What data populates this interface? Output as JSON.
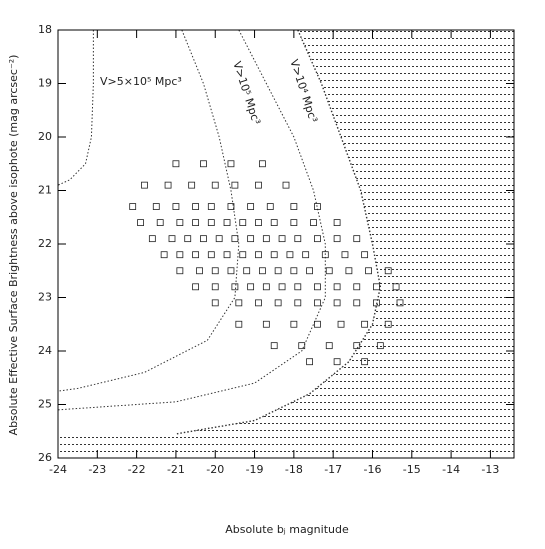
{
  "chart_data": {
    "type": "scatter",
    "xlabel": "Absolute bⱼ magnitude",
    "ylabel": "Absolute Effective Surface Brightness above isophote (mag arcsec⁻²)",
    "xlim": [
      -24,
      -12.4
    ],
    "ylim": [
      26,
      18
    ],
    "xticks": [
      -24,
      -23,
      -22,
      -21,
      -20,
      -19,
      -18,
      -17,
      -16,
      -15,
      -14,
      -13
    ],
    "yticks": [
      18,
      19,
      20,
      21,
      22,
      23,
      24,
      25,
      26
    ],
    "marker_color": "#222222",
    "x": [
      -21.0,
      -20.3,
      -19.6,
      -18.8,
      -21.8,
      -21.2,
      -20.6,
      -20.0,
      -19.5,
      -18.9,
      -18.2,
      -22.1,
      -21.5,
      -21.0,
      -20.5,
      -20.1,
      -19.6,
      -19.1,
      -18.6,
      -18.0,
      -17.4,
      -21.9,
      -21.4,
      -20.9,
      -20.5,
      -20.1,
      -19.7,
      -19.3,
      -18.9,
      -18.5,
      -18.0,
      -17.5,
      -16.9,
      -21.6,
      -21.1,
      -20.7,
      -20.3,
      -19.9,
      -19.5,
      -19.1,
      -18.7,
      -18.3,
      -17.9,
      -17.4,
      -16.9,
      -16.4,
      -21.3,
      -20.9,
      -20.5,
      -20.1,
      -19.7,
      -19.3,
      -18.9,
      -18.5,
      -18.1,
      -17.7,
      -17.2,
      -16.7,
      -16.2,
      -20.9,
      -20.4,
      -20.0,
      -19.6,
      -19.2,
      -18.8,
      -18.4,
      -18.0,
      -17.6,
      -17.1,
      -16.6,
      -16.1,
      -15.6,
      -20.5,
      -20.0,
      -19.5,
      -19.1,
      -18.7,
      -18.3,
      -17.9,
      -17.4,
      -16.9,
      -16.4,
      -15.9,
      -15.4,
      -20.0,
      -19.4,
      -18.9,
      -18.4,
      -17.9,
      -17.4,
      -16.9,
      -16.4,
      -15.9,
      -15.3,
      -19.4,
      -18.7,
      -18.0,
      -17.4,
      -16.8,
      -16.2,
      -15.6,
      -18.5,
      -17.8,
      -17.1,
      -16.4,
      -15.8,
      -17.6,
      -16.9,
      -16.2
    ],
    "y": [
      20.5,
      20.5,
      20.5,
      20.5,
      20.9,
      20.9,
      20.9,
      20.9,
      20.9,
      20.9,
      20.9,
      21.3,
      21.3,
      21.3,
      21.3,
      21.3,
      21.3,
      21.3,
      21.3,
      21.3,
      21.3,
      21.6,
      21.6,
      21.6,
      21.6,
      21.6,
      21.6,
      21.6,
      21.6,
      21.6,
      21.6,
      21.6,
      21.6,
      21.9,
      21.9,
      21.9,
      21.9,
      21.9,
      21.9,
      21.9,
      21.9,
      21.9,
      21.9,
      21.9,
      21.9,
      21.9,
      22.2,
      22.2,
      22.2,
      22.2,
      22.2,
      22.2,
      22.2,
      22.2,
      22.2,
      22.2,
      22.2,
      22.2,
      22.2,
      22.5,
      22.5,
      22.5,
      22.5,
      22.5,
      22.5,
      22.5,
      22.5,
      22.5,
      22.5,
      22.5,
      22.5,
      22.5,
      22.8,
      22.8,
      22.8,
      22.8,
      22.8,
      22.8,
      22.8,
      22.8,
      22.8,
      22.8,
      22.8,
      22.8,
      23.1,
      23.1,
      23.1,
      23.1,
      23.1,
      23.1,
      23.1,
      23.1,
      23.1,
      23.1,
      23.5,
      23.5,
      23.5,
      23.5,
      23.5,
      23.5,
      23.5,
      23.9,
      23.9,
      23.9,
      23.9,
      23.9,
      24.2,
      24.2,
      24.2
    ],
    "curves": [
      {
        "x": [
          -23.1,
          -23.1,
          -23.15,
          -23.3,
          -23.7,
          -24
        ],
        "y": [
          18,
          19,
          20,
          20.5,
          20.8,
          20.9
        ]
      },
      {
        "name": "V>5×10⁵ Mpc³",
        "x": [
          -20.85,
          -20.3,
          -19.9,
          -19.6,
          -19.4,
          -19.5,
          -20.2,
          -21.8,
          -23.5,
          -24
        ],
        "y": [
          18,
          19,
          20,
          21,
          22,
          23,
          23.8,
          24.4,
          24.7,
          24.75
        ]
      },
      {
        "name": "V>10⁵ Mpc³",
        "x": [
          -19.4,
          -18.7,
          -18.0,
          -17.5,
          -17.2,
          -17.2,
          -17.8,
          -19.0,
          -21,
          -24
        ],
        "y": [
          18,
          19,
          20,
          21,
          22,
          23,
          24,
          24.6,
          24.95,
          25.1
        ]
      },
      {
        "name": "V>10⁴ Mpc³",
        "fill": "hatch",
        "x": [
          -17.9,
          -17.3,
          -16.8,
          -16.3,
          -16.0,
          -15.8,
          -16.0,
          -16.6,
          -17.6,
          -19.0,
          -21.0
        ],
        "y": [
          18,
          19,
          20,
          21,
          22,
          22.8,
          23.5,
          24.2,
          24.8,
          25.3,
          25.55
        ]
      }
    ]
  }
}
